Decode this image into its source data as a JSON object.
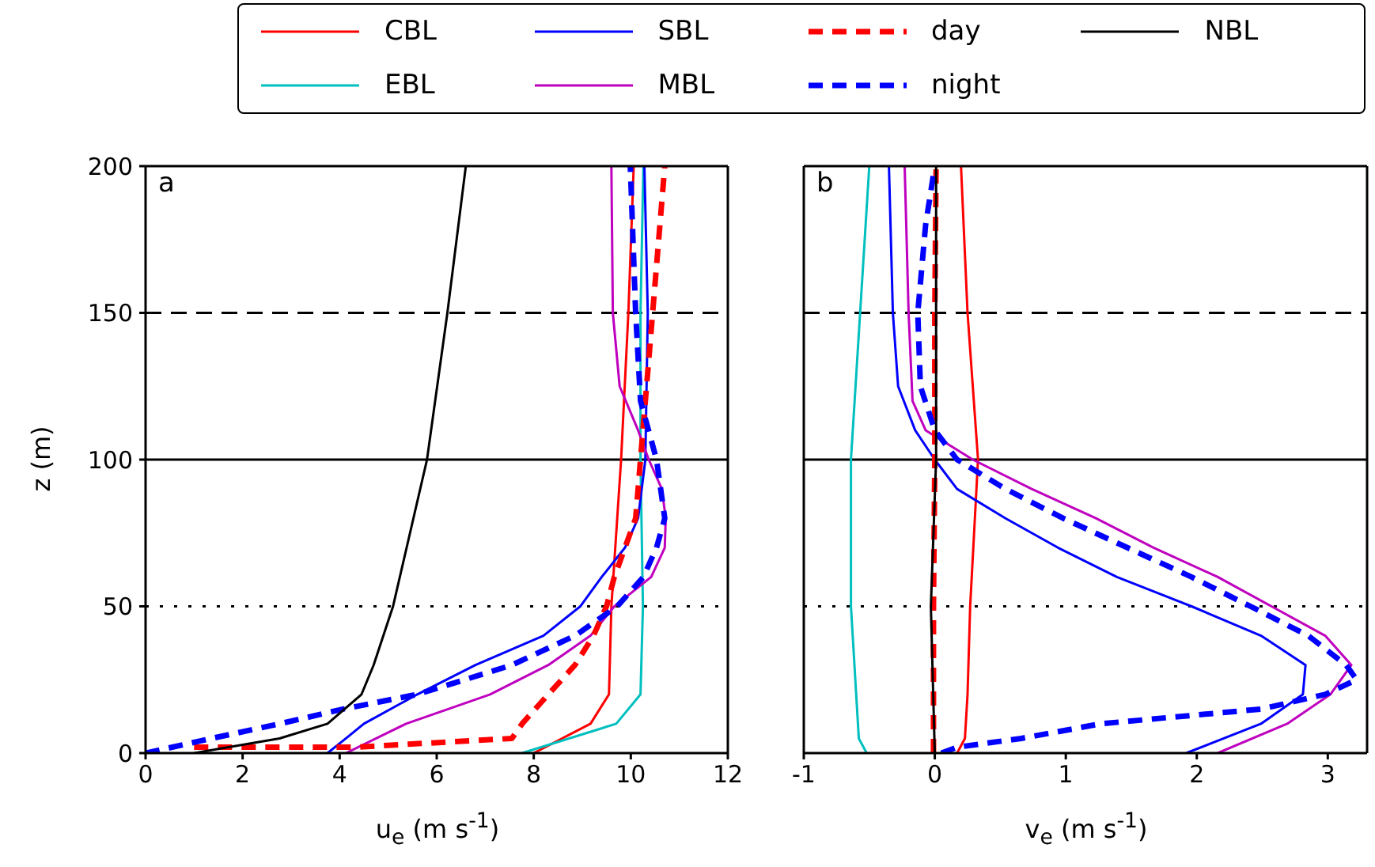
{
  "chart_data": [
    {
      "type": "line",
      "xlabel": "u$_{e}$ (m s$^{-1}$)",
      "ylabel": "z (m)",
      "annotations": [
        "a"
      ],
      "legend": "top",
      "xlim": [
        0,
        12
      ],
      "xticks": [
        0,
        2,
        4,
        6,
        8,
        10,
        12
      ],
      "ylim": [
        0,
        200
      ],
      "yticks": [
        0,
        50,
        100,
        150,
        200
      ],
      "ref_lines": [
        {
          "axis": "y",
          "value": 150,
          "line_style": "dashed",
          "color": "#000000"
        },
        {
          "axis": "y",
          "value": 100,
          "line_style": "solid",
          "color": "#000000"
        },
        {
          "axis": "y",
          "value": 50,
          "line_style": "dotted",
          "color": "#000000"
        }
      ],
      "series": [
        {
          "name": "CBL",
          "color": "#ff0000",
          "line_style": "solid",
          "x": [
            8.0,
            9.17,
            9.55,
            9.6,
            9.8,
            9.95,
            10.06
          ],
          "values": [
            0,
            10,
            20,
            50,
            100,
            150,
            200
          ]
        },
        {
          "name": "EBL",
          "color": "#00bfbf",
          "line_style": "solid",
          "x": [
            7.76,
            9.7,
            10.2,
            10.25,
            10.2,
            10.2,
            10.26
          ],
          "values": [
            0,
            10,
            20,
            50,
            100,
            150,
            200
          ]
        },
        {
          "name": "SBL",
          "color": "#0000ff",
          "line_style": "solid",
          "x": [
            3.75,
            4.13,
            4.5,
            5.6,
            6.8,
            8.2,
            8.96,
            9.4,
            9.88,
            10.15,
            10.3,
            10.35,
            10.28
          ],
          "values": [
            0,
            5,
            10,
            20,
            30,
            40,
            50,
            60,
            70,
            80,
            100,
            150,
            200
          ]
        },
        {
          "name": "MBL",
          "color": "#bf00bf",
          "line_style": "solid",
          "x": [
            4.13,
            5.37,
            7.1,
            8.3,
            9.17,
            9.66,
            10.42,
            10.7,
            10.72,
            10.64,
            10.37,
            10.15,
            9.77,
            9.63,
            9.6
          ],
          "values": [
            0,
            10,
            20,
            30,
            40,
            50,
            60,
            70,
            80,
            90,
            100,
            110,
            125,
            150,
            200
          ]
        },
        {
          "name": "day",
          "color": "#ff0000",
          "line_style": "dashed",
          "x": [
            1.0,
            4.3,
            7.55,
            7.76,
            8.3,
            8.85,
            9.23,
            9.5,
            9.66,
            10.1,
            10.2,
            10.45,
            10.7
          ],
          "values": [
            2,
            2,
            5,
            10,
            20,
            30,
            40,
            50,
            60,
            80,
            100,
            150,
            200
          ]
        },
        {
          "name": "night",
          "color": "#0000ff",
          "line_style": "dashed",
          "x": [
            0,
            1.36,
            2.77,
            4.07,
            5.6,
            7.55,
            8.85,
            9.72,
            10.26,
            10.53,
            10.7,
            10.53,
            10.2,
            10.1,
            9.99
          ],
          "values": [
            0,
            5,
            10,
            15,
            20,
            30,
            40,
            50,
            60,
            70,
            80,
            100,
            120,
            150,
            200
          ]
        },
        {
          "name": "NBL",
          "color": "#000000",
          "line_style": "solid",
          "x": [
            1.0,
            2.76,
            3.75,
            4.45,
            4.7,
            5.1,
            5.8,
            6.22,
            6.6
          ],
          "values": [
            0,
            5,
            10,
            20,
            30,
            50,
            100,
            150,
            200
          ]
        }
      ]
    },
    {
      "type": "line",
      "xlabel": "v$_{e}$ (m s$^{-1}$)",
      "annotations": [
        "b"
      ],
      "xlim": [
        -1,
        3.3
      ],
      "xticks": [
        -1,
        0,
        1,
        2,
        3
      ],
      "ylim": [
        0,
        200
      ],
      "yticks": [
        0,
        50,
        100,
        150,
        200
      ],
      "tick_labels": "x",
      "ref_lines": [
        {
          "axis": "y",
          "value": 150,
          "line_style": "dashed",
          "color": "#000000"
        },
        {
          "axis": "y",
          "value": 100,
          "line_style": "solid",
          "color": "#000000"
        },
        {
          "axis": "y",
          "value": 50,
          "line_style": "dotted",
          "color": "#000000"
        }
      ],
      "series": [
        {
          "color": "#ff0000",
          "line_style": "solid",
          "x": [
            0.17,
            0.23,
            0.25,
            0.27,
            0.33,
            0.25,
            0.2
          ],
          "values": [
            0,
            5,
            20,
            50,
            100,
            150,
            200
          ]
        },
        {
          "color": "#00bfbf",
          "line_style": "solid",
          "x": [
            -0.52,
            -0.58,
            -0.6,
            -0.64,
            -0.64,
            -0.57,
            -0.5
          ],
          "values": [
            0,
            5,
            20,
            50,
            100,
            150,
            200
          ]
        },
        {
          "color": "#0000ff",
          "line_style": "solid",
          "x": [
            1.92,
            2.49,
            2.81,
            2.83,
            2.49,
            1.96,
            1.39,
            0.94,
            0.54,
            0.17,
            0,
            -0.15,
            -0.28,
            -0.32,
            -0.35
          ],
          "values": [
            0,
            10,
            20,
            30,
            40,
            50,
            60,
            70,
            80,
            90,
            100,
            110,
            125,
            150,
            200
          ]
        },
        {
          "color": "#bf00bf",
          "line_style": "solid",
          "x": [
            2.16,
            2.69,
            3.02,
            3.18,
            2.98,
            2.57,
            2.16,
            1.67,
            1.23,
            0.74,
            0.29,
            -0.07,
            -0.17,
            -0.2,
            -0.23
          ],
          "values": [
            0,
            10,
            20,
            30,
            40,
            50,
            60,
            70,
            80,
            90,
            100,
            110,
            120,
            150,
            200
          ]
        },
        {
          "color": "#ff0000",
          "line_style": "dashed",
          "x": [
            -0.01,
            -0.01,
            0,
            0,
            0.01
          ],
          "values": [
            0,
            50,
            100,
            150,
            200
          ]
        },
        {
          "color": "#0000ff",
          "line_style": "dashed",
          "x": [
            0.05,
            0.17,
            0.66,
            1.27,
            2.49,
            2.98,
            3.22,
            3.14,
            2.85,
            2.41,
            1.96,
            1.47,
            0.98,
            0.54,
            0.17,
            0,
            -0.11,
            -0.13,
            -0.07,
            0
          ],
          "values": [
            0,
            2,
            5,
            10,
            15,
            20,
            25,
            30,
            40,
            50,
            60,
            70,
            80,
            90,
            100,
            110,
            125,
            150,
            180,
            200
          ]
        },
        {
          "color": "#000000",
          "line_style": "solid",
          "x": [
            0,
            -0.03,
            0.01,
            0.01
          ],
          "values": [
            0,
            50,
            100,
            200
          ]
        }
      ]
    }
  ]
}
